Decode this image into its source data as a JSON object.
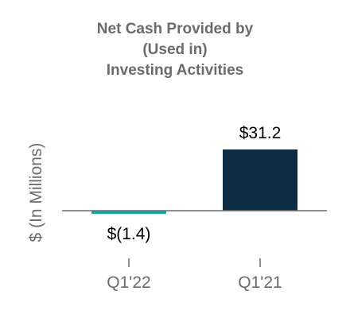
{
  "chart_data": {
    "type": "bar",
    "title_lines": [
      "Net Cash Provided by",
      "(Used in)",
      "Investing Activities"
    ],
    "ylabel": "$ (In Millions)",
    "categories": [
      "Q1'22",
      "Q1'21"
    ],
    "values": [
      -1.4,
      31.2
    ],
    "data_labels": [
      "$(1.4)",
      "$31.2"
    ],
    "colors": [
      "#1aa79c",
      "#0d2d45"
    ],
    "axis_color": "#6b6b6b",
    "ylim": [
      -3.5,
      32
    ]
  }
}
